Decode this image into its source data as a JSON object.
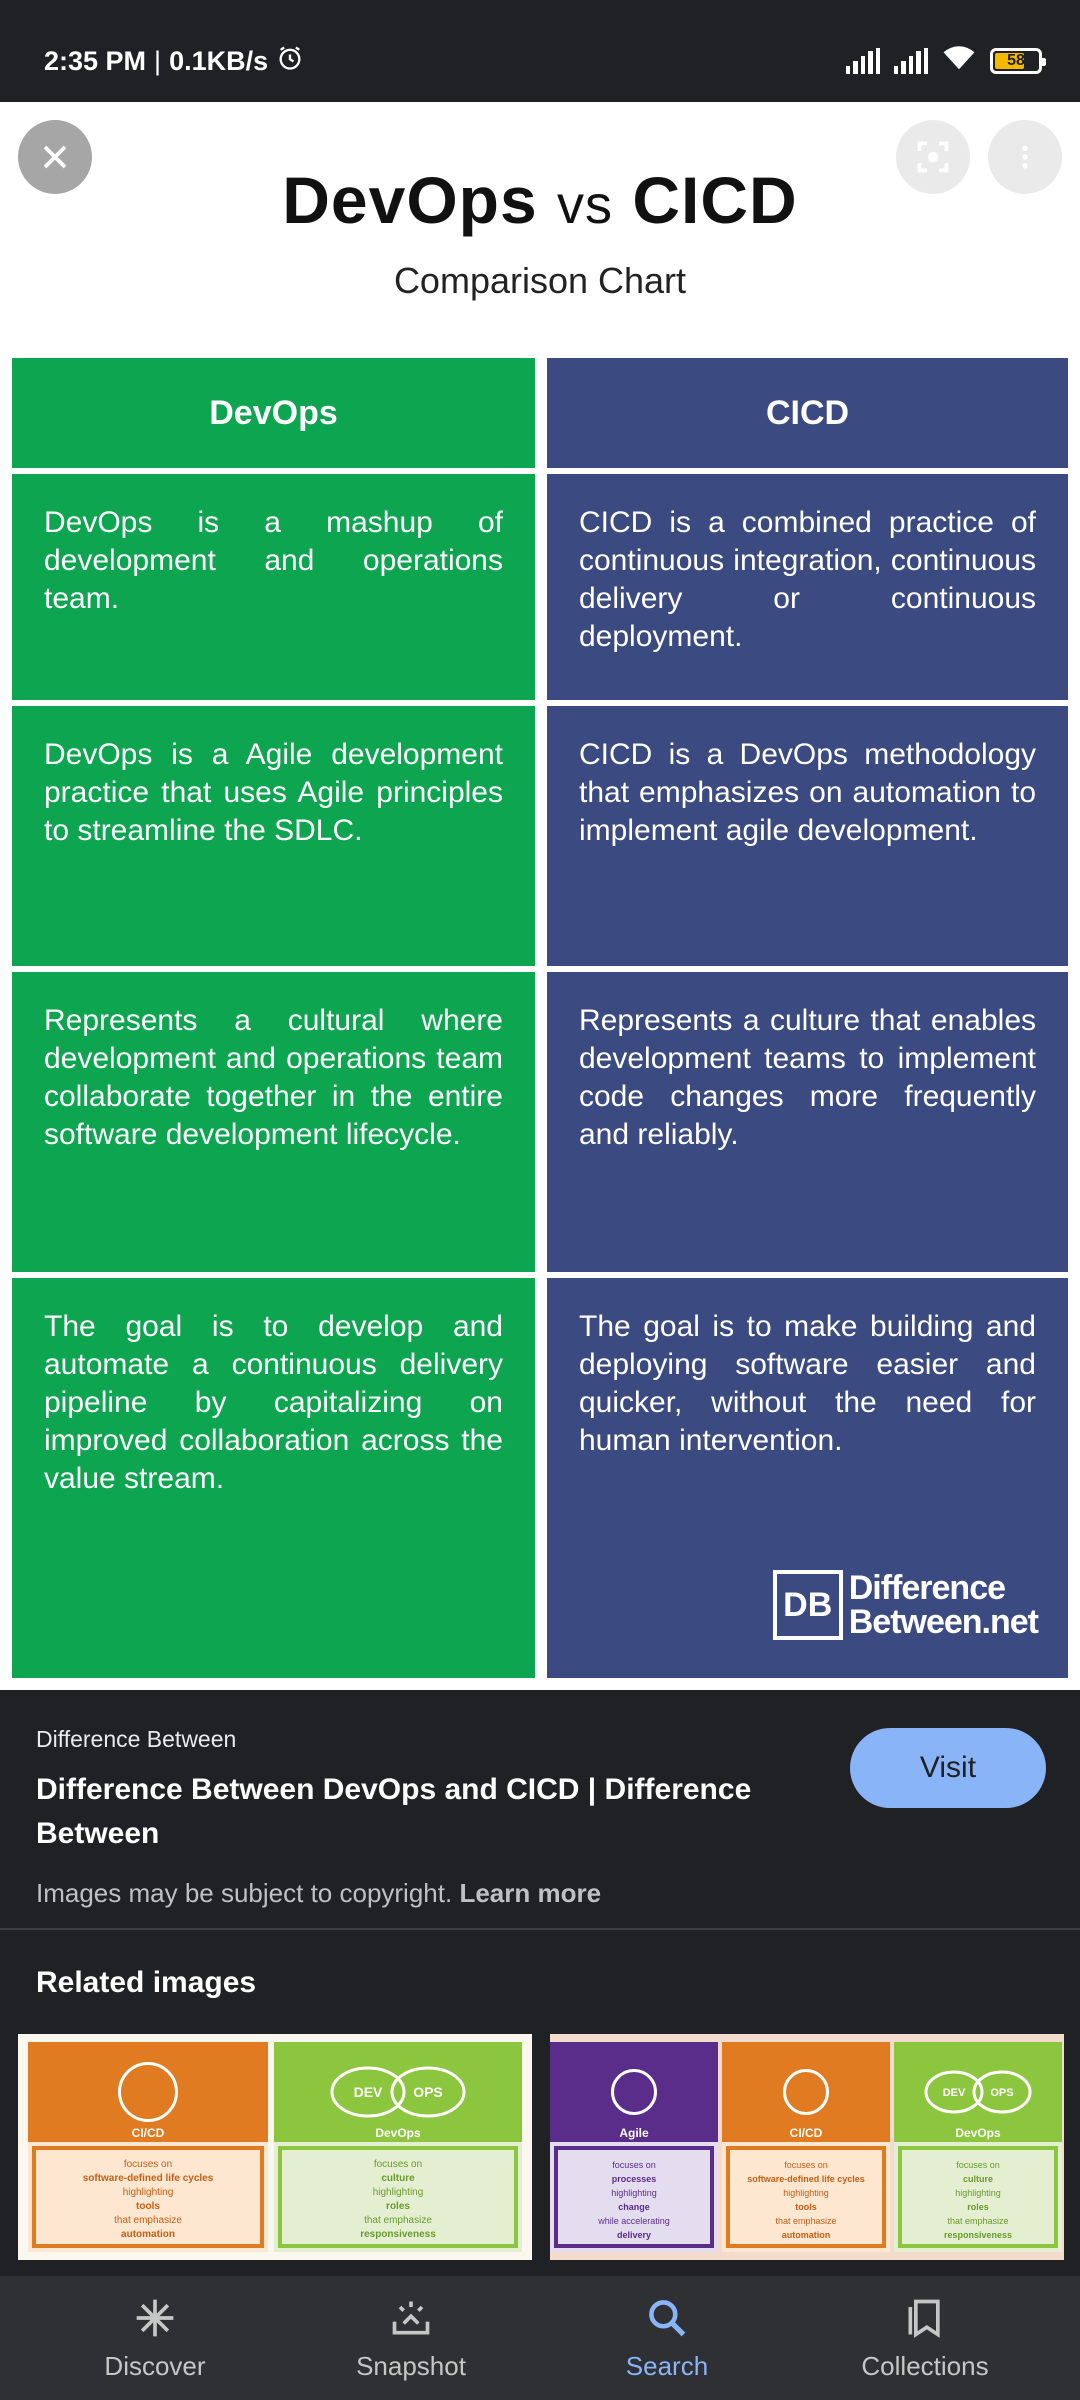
{
  "status_bar": {
    "time": "2:35 PM",
    "speed": "0.1KB/s",
    "battery": "58"
  },
  "viewer": {
    "close_icon": "close-icon",
    "lens_icon": "lens-icon",
    "more_icon": "more-vert-icon"
  },
  "chart_image": {
    "title_left": "DevOps",
    "title_vs": "vs",
    "title_right": "CICD",
    "subtitle": "Comparison Chart",
    "headers": [
      "DevOps",
      "CICD"
    ],
    "rows": [
      [
        "DevOps is a mashup of development and operations team.",
        "CICD is a combined practice of continuous integration, continuous delivery or continuous deployment."
      ],
      [
        "DevOps is a Agile development practice that uses Agile principles to streamline the SDLC.",
        "CICD is a DevOps methodology that emphasizes on automation to implement agile development."
      ],
      [
        "Represents a cultural where development and operations team collaborate together in the entire software development lifecycle.",
        "Represents a culture that enables development teams to implement code changes more frequently and reliably."
      ],
      [
        "The goal is to develop and automate a continuous delivery pipeline by capitalizing on improved collaboration across the value stream.",
        "The goal is to make building and deploying software easier and quicker, without the need for human intervention."
      ]
    ],
    "watermark_logo": "DB",
    "watermark_line1": "Difference",
    "watermark_line2": "Between.net",
    "colors": {
      "green": "#0ea550",
      "blue": "#3b4a80"
    }
  },
  "info": {
    "source": "Difference Between",
    "title": "Difference Between DevOps and CICD | Difference Between",
    "visit_label": "Visit",
    "copyright_text": "Images may be subject to copyright.",
    "learn_more": "Learn more"
  },
  "related": {
    "heading": "Related images",
    "thumb1": {
      "labels": [
        "CI/CD",
        "DevOps"
      ],
      "dev": "DEV",
      "ops": "OPS",
      "lines_left": [
        "focuses on",
        "software-defined life cycles",
        "highlighting",
        "tools",
        "that emphasize",
        "automation"
      ],
      "lines_right": [
        "focuses on",
        "culture",
        "highlighting",
        "roles",
        "that emphasize",
        "responsiveness"
      ]
    },
    "thumb2": {
      "labels": [
        "Agile",
        "CI/CD",
        "DevOps"
      ],
      "dev": "DEV",
      "ops": "OPS",
      "lines_a": [
        "focuses on",
        "processes",
        "highlighting",
        "change",
        "while accelerating",
        "delivery"
      ],
      "lines_b": [
        "focuses on",
        "software-defined life cycles",
        "highlighting",
        "tools",
        "that emphasize",
        "automation"
      ],
      "lines_c": [
        "focuses on",
        "culture",
        "highlighting",
        "roles",
        "that emphasize",
        "responsiveness"
      ]
    }
  },
  "bottom_nav": {
    "items": [
      {
        "label": "Discover",
        "icon": "asterisk-icon"
      },
      {
        "label": "Snapshot",
        "icon": "snapshot-icon"
      },
      {
        "label": "Search",
        "icon": "search-icon"
      },
      {
        "label": "Collections",
        "icon": "collections-icon"
      }
    ],
    "active": "Search"
  }
}
